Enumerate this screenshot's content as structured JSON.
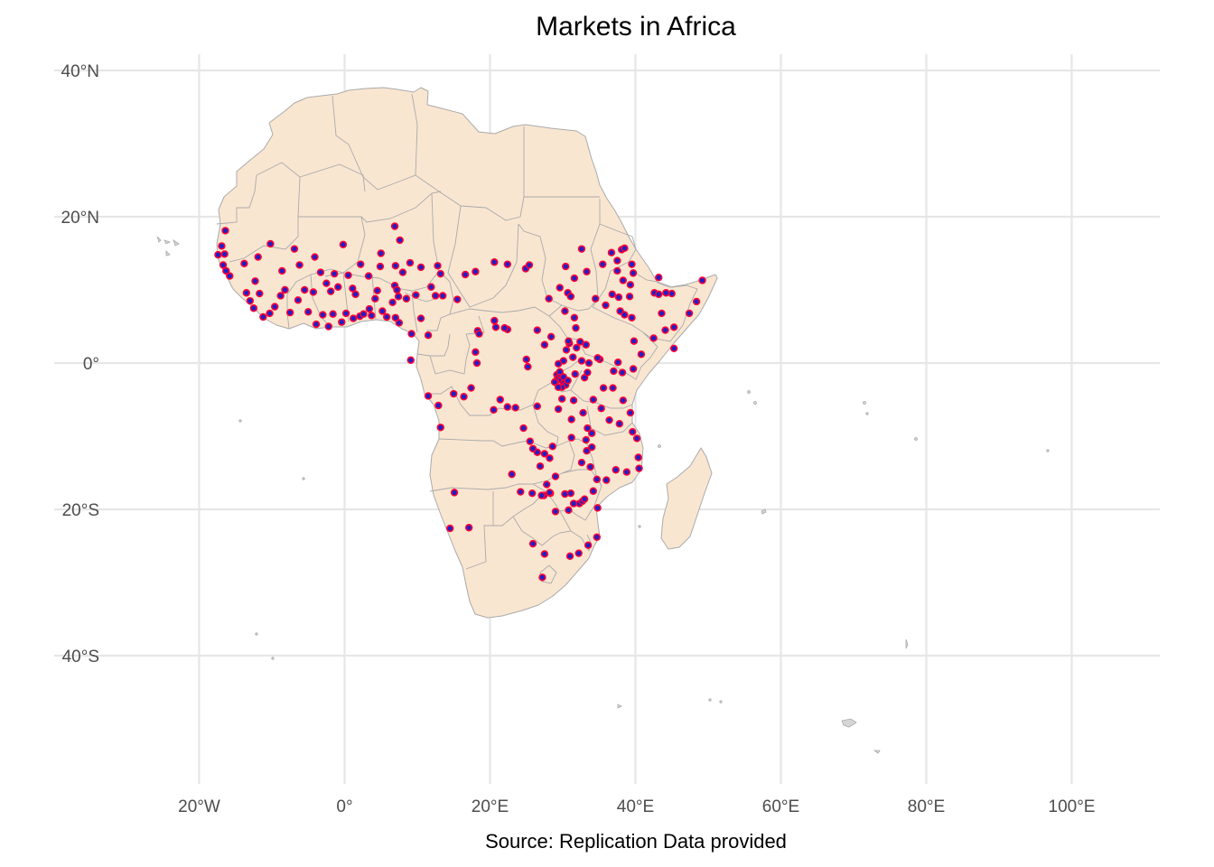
{
  "title": "Markets in Africa",
  "caption": "Source: Replication Data provided",
  "colors": {
    "land_fill": "#f9e6d1",
    "border": "#aaaaaa",
    "grid": "#e6e6e6",
    "point_fill": "#1f1fc8",
    "point_stroke": "#ff0033"
  },
  "chart_data": {
    "type": "scatter",
    "map": "Africa country outlines",
    "xlim": [
      -30,
      110
    ],
    "ylim": [
      -58,
      43
    ],
    "grid": true,
    "x_ticks": [
      {
        "value": -20,
        "label": "20°W"
      },
      {
        "value": 0,
        "label": "0°"
      },
      {
        "value": 20,
        "label": "20°E"
      },
      {
        "value": 40,
        "label": "40°E"
      },
      {
        "value": 60,
        "label": "60°E"
      },
      {
        "value": 80,
        "label": "80°E"
      },
      {
        "value": 100,
        "label": "100°E"
      }
    ],
    "y_ticks": [
      {
        "value": 40,
        "label": "40°N"
      },
      {
        "value": 20,
        "label": "20°N"
      },
      {
        "value": 0,
        "label": "0°"
      },
      {
        "value": -20,
        "label": "20°S"
      },
      {
        "value": -40,
        "label": "40°S"
      }
    ],
    "points": [
      [
        -17.4,
        14.8
      ],
      [
        -16.9,
        16.0
      ],
      [
        -16.4,
        18.1
      ],
      [
        -16.5,
        14.9
      ],
      [
        -16.7,
        13.4
      ],
      [
        -16.3,
        12.6
      ],
      [
        -15.8,
        11.9
      ],
      [
        -13.8,
        13.6
      ],
      [
        -12.3,
        11.2
      ],
      [
        -11.9,
        14.5
      ],
      [
        -10.2,
        16.3
      ],
      [
        -8.6,
        12.6
      ],
      [
        -6.9,
        15.6
      ],
      [
        -6.2,
        13.4
      ],
      [
        -4.1,
        14.5
      ],
      [
        -3.3,
        12.4
      ],
      [
        -2.5,
        10.9
      ],
      [
        -1.4,
        12.2
      ],
      [
        -0.2,
        16.2
      ],
      [
        0.5,
        12.0
      ],
      [
        2.2,
        13.5
      ],
      [
        5.0,
        15.0
      ],
      [
        4.9,
        13.2
      ],
      [
        3.3,
        11.9
      ],
      [
        6.9,
        18.7
      ],
      [
        7.6,
        16.8
      ],
      [
        7.0,
        13.3
      ],
      [
        8.0,
        12.4
      ],
      [
        9.0,
        13.7
      ],
      [
        10.5,
        13.1
      ],
      [
        12.8,
        13.3
      ],
      [
        13.2,
        12.2
      ],
      [
        -13.5,
        9.6
      ],
      [
        -13.0,
        8.5
      ],
      [
        -11.7,
        9.5
      ],
      [
        -12.5,
        7.5
      ],
      [
        -11.2,
        6.3
      ],
      [
        -10.3,
        6.8
      ],
      [
        -9.6,
        7.7
      ],
      [
        -8.8,
        9.2
      ],
      [
        -8.2,
        10.0
      ],
      [
        -7.5,
        6.9
      ],
      [
        -6.4,
        8.6
      ],
      [
        -5.5,
        10.0
      ],
      [
        -5.0,
        7.0
      ],
      [
        -4.3,
        9.7
      ],
      [
        -3.9,
        5.3
      ],
      [
        -3.0,
        6.6
      ],
      [
        -2.2,
        5.0
      ],
      [
        -1.6,
        6.7
      ],
      [
        -1.9,
        9.8
      ],
      [
        -0.9,
        10.4
      ],
      [
        0.2,
        6.8
      ],
      [
        -0.4,
        5.6
      ],
      [
        1.2,
        6.1
      ],
      [
        1.5,
        9.4
      ],
      [
        1.1,
        10.2
      ],
      [
        2.1,
        6.4
      ],
      [
        2.6,
        6.7
      ],
      [
        3.4,
        7.4
      ],
      [
        3.7,
        6.5
      ],
      [
        4.2,
        8.8
      ],
      [
        4.5,
        9.9
      ],
      [
        5.2,
        7.1
      ],
      [
        5.8,
        6.3
      ],
      [
        6.6,
        8.3
      ],
      [
        7.4,
        9.1
      ],
      [
        6.9,
        10.6
      ],
      [
        7.2,
        10.0
      ],
      [
        7.0,
        6.2
      ],
      [
        7.5,
        5.5
      ],
      [
        8.5,
        8.8
      ],
      [
        9.8,
        9.3
      ],
      [
        10.5,
        6.1
      ],
      [
        9.2,
        4.0
      ],
      [
        11.5,
        3.8
      ],
      [
        9.1,
        0.4
      ],
      [
        11.9,
        10.4
      ],
      [
        13.5,
        9.2
      ],
      [
        12.5,
        9.2
      ],
      [
        15.5,
        8.7
      ],
      [
        16.6,
        12.1
      ],
      [
        18.0,
        12.5
      ],
      [
        20.6,
        13.8
      ],
      [
        22.4,
        13.5
      ],
      [
        24.9,
        12.9
      ],
      [
        25.4,
        13.4
      ],
      [
        30.4,
        13.2
      ],
      [
        32.6,
        15.6
      ],
      [
        33.3,
        12.5
      ],
      [
        31.6,
        11.6
      ],
      [
        29.6,
        10.3
      ],
      [
        30.7,
        9.6
      ],
      [
        28.1,
        8.8
      ],
      [
        31.1,
        9.1
      ],
      [
        30.3,
        7.1
      ],
      [
        31.6,
        6.2
      ],
      [
        31.8,
        4.8
      ],
      [
        35.5,
        13.5
      ],
      [
        36.7,
        15.1
      ],
      [
        38.1,
        15.5
      ],
      [
        38.5,
        15.7
      ],
      [
        37.5,
        14.0
      ],
      [
        39.5,
        13.5
      ],
      [
        39.7,
        12.3
      ],
      [
        38.3,
        11.3
      ],
      [
        37.5,
        12.6
      ],
      [
        39.3,
        10.7
      ],
      [
        39.2,
        9.1
      ],
      [
        37.7,
        9.0
      ],
      [
        36.8,
        9.4
      ],
      [
        34.5,
        8.8
      ],
      [
        35.9,
        7.9
      ],
      [
        37.9,
        7.1
      ],
      [
        38.5,
        6.6
      ],
      [
        39.5,
        6.2
      ],
      [
        42.6,
        9.6
      ],
      [
        43.2,
        9.4
      ],
      [
        44.2,
        9.6
      ],
      [
        43.2,
        11.7
      ],
      [
        45.0,
        9.5
      ],
      [
        48.4,
        8.4
      ],
      [
        47.4,
        6.8
      ],
      [
        49.2,
        11.3
      ],
      [
        45.3,
        4.9
      ],
      [
        44.1,
        4.5
      ],
      [
        43.6,
        6.8
      ],
      [
        42.5,
        3.4
      ],
      [
        45.3,
        2.0
      ],
      [
        39.8,
        3.0
      ],
      [
        40.8,
        1.2
      ],
      [
        39.7,
        -0.8
      ],
      [
        38.2,
        -1.3
      ],
      [
        37.0,
        -1.1
      ],
      [
        37.6,
        0.1
      ],
      [
        35.1,
        0.5
      ],
      [
        34.8,
        0.7
      ],
      [
        33.6,
        0.0
      ],
      [
        32.6,
        0.3
      ],
      [
        33.2,
        2.5
      ],
      [
        32.4,
        2.9
      ],
      [
        30.9,
        2.7
      ],
      [
        30.5,
        1.8
      ],
      [
        31.4,
        0.8
      ],
      [
        30.1,
        0.3
      ],
      [
        29.4,
        -0.1
      ],
      [
        30.8,
        3.0
      ],
      [
        31.9,
        2.1
      ],
      [
        29.2,
        -1.6
      ],
      [
        29.0,
        -2.5
      ],
      [
        29.4,
        -2.1
      ],
      [
        29.7,
        -1.7
      ],
      [
        29.8,
        -2.3
      ],
      [
        30.1,
        -2.8
      ],
      [
        30.4,
        -3.0
      ],
      [
        29.9,
        -3.3
      ],
      [
        29.4,
        -3.3
      ],
      [
        28.9,
        -2.6
      ],
      [
        30.1,
        -1.9
      ],
      [
        29.6,
        -1.2
      ],
      [
        30.7,
        -2.4
      ],
      [
        31.7,
        -1.5
      ],
      [
        33.0,
        -2.0
      ],
      [
        33.4,
        -1.3
      ],
      [
        34.2,
        -5.0
      ],
      [
        35.6,
        -3.4
      ],
      [
        36.9,
        -3.4
      ],
      [
        38.3,
        -5.1
      ],
      [
        39.3,
        -6.8
      ],
      [
        32.8,
        -6.8
      ],
      [
        29.9,
        -4.9
      ],
      [
        31.5,
        -5.1
      ],
      [
        29.4,
        -6.3
      ],
      [
        31.2,
        -7.7
      ],
      [
        33.4,
        -8.9
      ],
      [
        35.3,
        -6.2
      ],
      [
        34.0,
        -9.6
      ],
      [
        33.2,
        -10.5
      ],
      [
        36.4,
        -7.8
      ],
      [
        37.8,
        -8.3
      ],
      [
        39.6,
        -9.4
      ],
      [
        40.2,
        -10.3
      ],
      [
        40.4,
        -12.9
      ],
      [
        40.5,
        -14.4
      ],
      [
        38.8,
        -14.9
      ],
      [
        37.3,
        -14.6
      ],
      [
        36.0,
        -16.0
      ],
      [
        34.7,
        -15.9
      ],
      [
        33.8,
        -14.2
      ],
      [
        32.6,
        -13.6
      ],
      [
        33.3,
        -12.0
      ],
      [
        34.0,
        -11.5
      ],
      [
        31.2,
        -10.2
      ],
      [
        28.6,
        -11.4
      ],
      [
        28.2,
        -13.0
      ],
      [
        27.5,
        -12.4
      ],
      [
        26.5,
        -12.2
      ],
      [
        25.9,
        -11.7
      ],
      [
        25.5,
        -10.7
      ],
      [
        26.9,
        -14.1
      ],
      [
        27.8,
        -16.6
      ],
      [
        29.0,
        -15.5
      ],
      [
        28.3,
        -17.8
      ],
      [
        30.3,
        -17.9
      ],
      [
        31.1,
        -17.8
      ],
      [
        31.5,
        -19.2
      ],
      [
        32.3,
        -19.2
      ],
      [
        32.7,
        -18.9
      ],
      [
        33.0,
        -18.6
      ],
      [
        34.2,
        -17.5
      ],
      [
        34.8,
        -19.8
      ],
      [
        30.8,
        -20.1
      ],
      [
        29.0,
        -20.3
      ],
      [
        28.2,
        -17.7
      ],
      [
        27.4,
        -18.1
      ],
      [
        27.1,
        -18.1
      ],
      [
        25.8,
        -17.8
      ],
      [
        24.2,
        -17.6
      ],
      [
        23.0,
        -15.2
      ],
      [
        22.4,
        -6.0
      ],
      [
        23.5,
        -6.1
      ],
      [
        24.6,
        -8.9
      ],
      [
        25.0,
        0.5
      ],
      [
        25.2,
        -0.5
      ],
      [
        26.5,
        -5.9
      ],
      [
        21.4,
        -5.0
      ],
      [
        20.5,
        -6.4
      ],
      [
        18.2,
        0.0
      ],
      [
        18.0,
        1.5
      ],
      [
        18.3,
        4.4
      ],
      [
        16.4,
        -4.6
      ],
      [
        17.4,
        -3.4
      ],
      [
        15.0,
        -4.2
      ],
      [
        12.9,
        -5.8
      ],
      [
        13.2,
        -8.8
      ],
      [
        11.5,
        -4.5
      ],
      [
        15.1,
        -17.7
      ],
      [
        17.1,
        -22.5
      ],
      [
        14.5,
        -22.6
      ],
      [
        25.9,
        -24.7
      ],
      [
        27.5,
        -26.1
      ],
      [
        27.2,
        -29.3
      ],
      [
        31.0,
        -26.4
      ],
      [
        32.2,
        -26.0
      ],
      [
        33.5,
        -24.9
      ],
      [
        34.7,
        -23.8
      ],
      [
        18.5,
        4.0
      ],
      [
        20.6,
        5.8
      ],
      [
        20.8,
        4.9
      ],
      [
        22.4,
        4.6
      ],
      [
        26.5,
        4.5
      ],
      [
        28.4,
        3.6
      ],
      [
        27.5,
        2.5
      ],
      [
        22.0,
        4.8
      ]
    ]
  }
}
